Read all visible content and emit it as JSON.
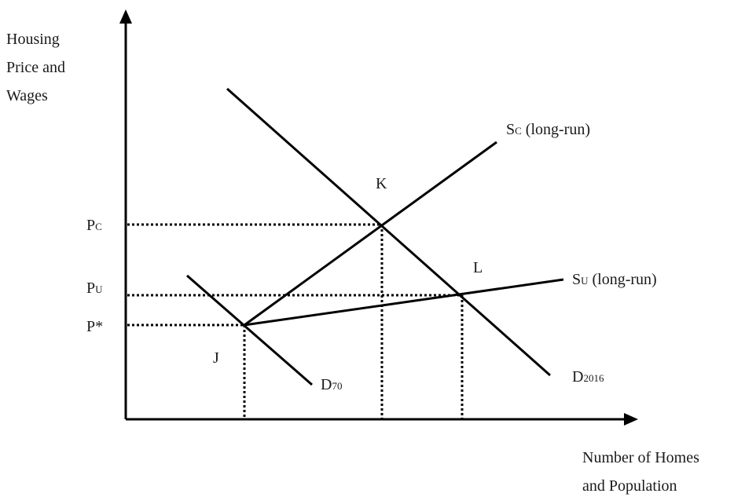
{
  "axes": {
    "y_label": [
      "Housing",
      "Price and",
      "Wages"
    ],
    "x_label": [
      "Number of Homes",
      "and Population"
    ]
  },
  "price_levels": [
    {
      "main": "P",
      "sub": "C"
    },
    {
      "main": "P",
      "sub": "U"
    },
    {
      "main": "P*",
      "sub": ""
    }
  ],
  "points": {
    "j": "J",
    "k": "K",
    "l": "L"
  },
  "curves": {
    "supply_c": {
      "main": "S",
      "sub": "C",
      "rest": " (long-run)"
    },
    "supply_u": {
      "main": "S",
      "sub": "U",
      "rest": " (long-run)"
    },
    "demand_70": {
      "main": "D",
      "sub": "70"
    },
    "demand_2016": {
      "main": "D",
      "sub": "2016"
    }
  }
}
